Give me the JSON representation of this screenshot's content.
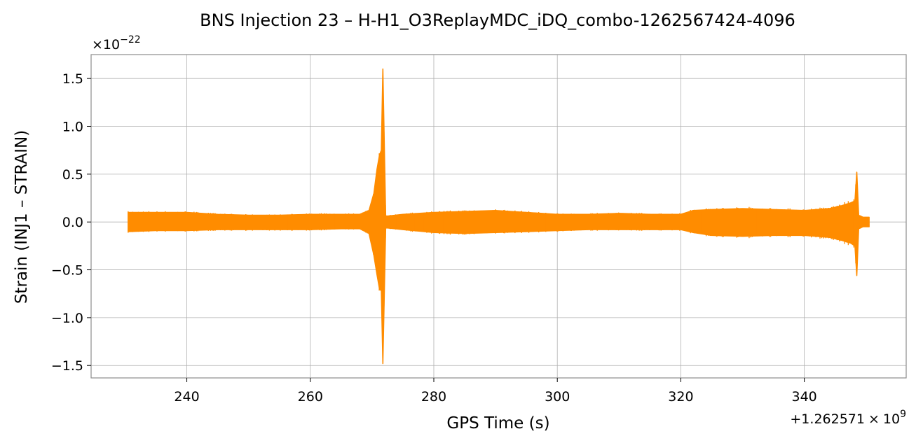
{
  "chart_data": {
    "type": "line",
    "title": "BNS Injection 23 – H-H1_O3ReplayMDC_iDQ_combo-1262567424-4096",
    "xlabel": "GPS Time (s)",
    "ylabel": "Strain (INJ1 – STRAIN)",
    "y_scale_label": "×10",
    "y_scale_exponent": "−22",
    "x_offset_label": "+1.262571",
    "x_offset_multiplier": "×",
    "x_offset_exponent": "9",
    "x_offset_base": "10",
    "xlim": [
      224.5,
      356.5
    ],
    "ylim": [
      -1.63,
      1.75
    ],
    "x_ticks": [
      240,
      260,
      280,
      300,
      320,
      340
    ],
    "x_tick_labels": [
      "240",
      "260",
      "280",
      "300",
      "320",
      "340"
    ],
    "y_ticks": [
      1.5,
      1.0,
      0.5,
      0.0,
      -0.5,
      -1.0,
      -1.5
    ],
    "y_tick_labels": [
      "1.5",
      "1.0",
      "0.5",
      "0.0",
      "−0.5",
      "−1.0",
      "−1.5"
    ],
    "grid": true,
    "color": "#ff8c00",
    "series": [
      {
        "x": [
          230.5,
          235,
          240,
          245,
          250,
          255,
          260,
          265,
          268,
          269.5,
          270.3,
          270.8,
          271.2,
          271.5,
          271.75,
          272.2,
          275,
          280,
          285,
          290,
          295,
          300,
          305,
          310,
          315,
          320,
          322,
          325,
          330,
          335,
          340,
          344,
          346,
          347.5,
          348.2,
          348.5,
          348.8,
          349.5,
          350.5
        ],
        "upper": [
          0.1,
          0.1,
          0.1,
          0.08,
          0.07,
          0.07,
          0.08,
          0.08,
          0.08,
          0.12,
          0.3,
          0.55,
          0.7,
          0.75,
          1.6,
          0.06,
          0.08,
          0.1,
          0.11,
          0.12,
          0.1,
          0.08,
          0.08,
          0.09,
          0.08,
          0.08,
          0.12,
          0.13,
          0.14,
          0.13,
          0.12,
          0.14,
          0.17,
          0.2,
          0.22,
          0.52,
          0.07,
          0.05,
          0.05
        ],
        "lower": [
          -0.1,
          -0.09,
          -0.09,
          -0.08,
          -0.08,
          -0.08,
          -0.08,
          -0.07,
          -0.07,
          -0.12,
          -0.35,
          -0.55,
          -0.7,
          -0.72,
          -1.48,
          -0.06,
          -0.08,
          -0.11,
          -0.12,
          -0.11,
          -0.1,
          -0.09,
          -0.08,
          -0.08,
          -0.08,
          -0.08,
          -0.11,
          -0.14,
          -0.15,
          -0.14,
          -0.14,
          -0.16,
          -0.19,
          -0.22,
          -0.25,
          -0.56,
          -0.07,
          -0.05,
          -0.05
        ]
      }
    ]
  }
}
